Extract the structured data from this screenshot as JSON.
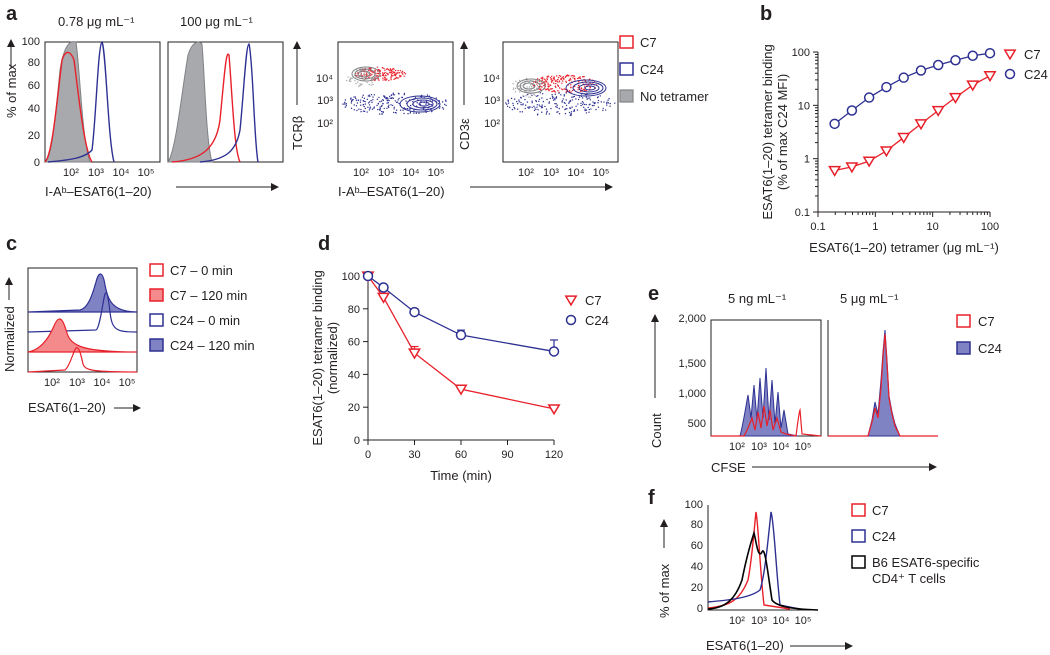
{
  "panel_labels": {
    "a": "a",
    "b": "b",
    "c": "c",
    "d": "d",
    "e": "e",
    "f": "f"
  },
  "colors": {
    "c7": "#e8202a",
    "c24": "#2e3192",
    "gray": "#a7a9ac",
    "black": "#000000",
    "c7_fill": "#f58a8c",
    "c24_fill": "#7f82c3"
  },
  "panel_a": {
    "ylabel": "% of max",
    "xlabel": "I-Aᵇ–ESAT6(1–20)",
    "xlabel_flow": "I-Aᵇ–ESAT6(1–20)",
    "titles": [
      "0.78 μg mL⁻¹",
      "100 μg mL⁻¹"
    ],
    "yticks": [
      "0",
      "20",
      "40",
      "60",
      "80",
      "100"
    ],
    "xticks": [
      "10²",
      "10³",
      "10⁴",
      "10⁵"
    ],
    "flow_ylabels": [
      "TCRβ",
      "CD3ε"
    ],
    "flow_yticks": [
      "10²",
      "10³",
      "10⁴"
    ],
    "legend": [
      "C7",
      "C24",
      "No tetramer"
    ]
  },
  "panel_c": {
    "ylabel": "Normalized",
    "xlabel": "ESAT6(1–20)",
    "xticks": [
      "10²",
      "10³",
      "10⁴",
      "10⁵"
    ],
    "legend": [
      "C7 – 0 min",
      "C7 – 120 min",
      "C24 – 0 min",
      "C24 – 120 min"
    ]
  },
  "panel_e": {
    "ylabel": "Count",
    "xlabel": "CFSE",
    "titles": [
      "5 ng mL⁻¹",
      "5 μg mL⁻¹"
    ],
    "yticks": [
      "500",
      "1,000",
      "1,500",
      "2,000"
    ],
    "xticks": [
      "10²",
      "10³",
      "10⁴",
      "10⁵"
    ],
    "legend": [
      "C7",
      "C24"
    ]
  },
  "panel_f": {
    "ylabel": "% of max",
    "xlabel": "ESAT6(1–20)",
    "yticks": [
      "0",
      "20",
      "40",
      "60",
      "80",
      "100"
    ],
    "xticks": [
      "10²",
      "10³",
      "10⁴",
      "10⁵"
    ],
    "legend": [
      "C7",
      "C24",
      "B6 ESAT6-specific",
      "CD4⁺ T cells"
    ]
  },
  "chart_data": [
    {
      "id": "b",
      "type": "line",
      "title": "",
      "xlabel": "ESAT6(1–20) tetramer (μg mL⁻¹)",
      "ylabel_lines": [
        "ESAT6(1–20) tetramer binding",
        "(% of max C24 MFI)"
      ],
      "xscale": "log",
      "yscale": "log",
      "xlim": [
        0.1,
        100
      ],
      "ylim": [
        0.1,
        100
      ],
      "xticks": [
        0.1,
        1,
        10,
        100
      ],
      "yticks": [
        0.1,
        1,
        10,
        100
      ],
      "legend_position": "top-right",
      "series": [
        {
          "name": "C7",
          "marker": "triangle-down",
          "color": "#e8202a",
          "x": [
            0.195,
            0.39,
            0.78,
            1.56,
            3.125,
            6.25,
            12.5,
            25,
            50,
            100
          ],
          "y": [
            0.6,
            0.7,
            0.9,
            1.4,
            2.5,
            4.5,
            8,
            14,
            24,
            36
          ]
        },
        {
          "name": "C24",
          "marker": "circle",
          "color": "#2e3192",
          "x": [
            0.195,
            0.39,
            0.78,
            1.56,
            3.125,
            6.25,
            12.5,
            25,
            50,
            100
          ],
          "y": [
            4.5,
            8,
            14,
            22,
            33,
            45,
            57,
            70,
            85,
            95
          ]
        }
      ]
    },
    {
      "id": "d",
      "type": "line",
      "title": "",
      "xlabel": "Time (min)",
      "ylabel_lines": [
        "ESAT6(1–20) tetramer binding",
        "(normalized)"
      ],
      "xlim": [
        0,
        120
      ],
      "ylim": [
        0,
        100
      ],
      "xticks": [
        0,
        30,
        60,
        90,
        120
      ],
      "yticks": [
        0,
        20,
        40,
        60,
        80,
        100
      ],
      "legend_position": "top-right",
      "series": [
        {
          "name": "C7",
          "marker": "triangle-down",
          "color": "#e8202a",
          "x": [
            0,
            10,
            30,
            60,
            120
          ],
          "y": [
            100,
            87,
            53,
            31,
            19
          ],
          "err": [
            0,
            0,
            4,
            0,
            2
          ]
        },
        {
          "name": "C24",
          "marker": "circle",
          "color": "#2e3192",
          "x": [
            0,
            10,
            30,
            60,
            120
          ],
          "y": [
            100,
            93,
            78,
            64,
            54
          ],
          "err": [
            0,
            0,
            2,
            3,
            7
          ]
        }
      ]
    }
  ]
}
